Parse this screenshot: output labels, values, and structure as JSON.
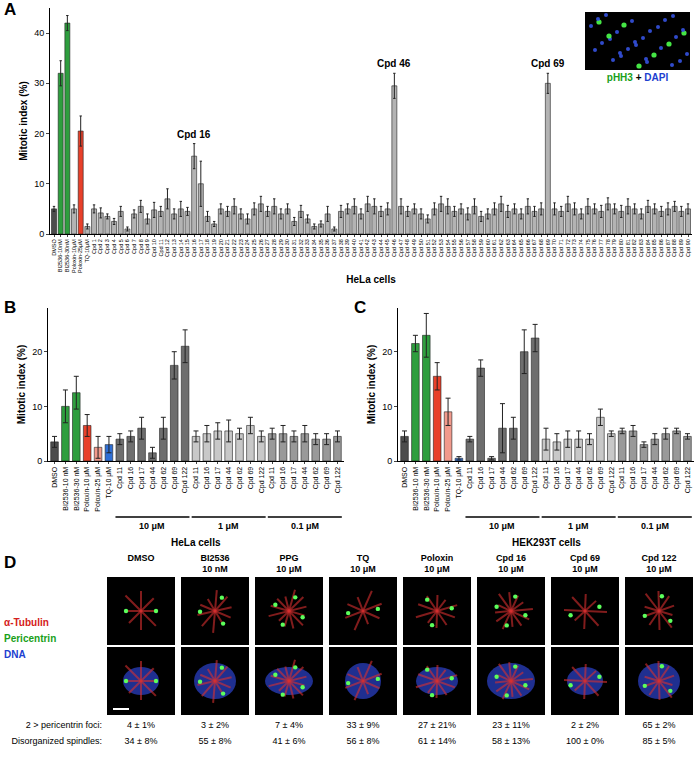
{
  "panel_labels": [
    "A",
    "B",
    "C",
    "D"
  ],
  "inset_label": [
    "pHH3",
    "+",
    "DAPI"
  ],
  "chart_data": [
    {
      "type": "bar",
      "ylabel": "Mitotic index (%)",
      "xlabel": "HeLa cells",
      "categories": [
        "DMSO",
        "BI2536-10nM",
        "BI2536-30nM",
        "Poloxin-10μM",
        "Poloxin-25μM",
        "TQ-10μM",
        "Cpd 1",
        "Cpd 2",
        "Cpd 3",
        "Cpd 4",
        "Cpd 5",
        "Cpd 6",
        "Cpd 7",
        "Cpd 8",
        "Cpd 9",
        "Cpd 10",
        "Cpd 11",
        "Cpd 12",
        "Cpd 13",
        "Cpd 14",
        "Cpd 15",
        "Cpd 16",
        "Cpd 17",
        "Cpd 18",
        "Cpd 19",
        "Cpd 20",
        "Cpd 21",
        "Cpd 22",
        "Cpd 23",
        "Cpd 24",
        "Cpd 25",
        "Cpd 26",
        "Cpd 27",
        "Cpd 28",
        "Cpd 29",
        "Cpd 30",
        "Cpd 31",
        "Cpd 32",
        "Cpd 33",
        "Cpd 34",
        "Cpd 35",
        "Cpd 36",
        "Cpd 37",
        "Cpd 38",
        "Cpd 39",
        "Cpd 40",
        "Cpd 41",
        "Cpd 42",
        "Cpd 43",
        "Cpd 44",
        "Cpd 45",
        "Cpd 46",
        "Cpd 47",
        "Cpd 48",
        "Cpd 49",
        "Cpd 50",
        "Cpd 51",
        "Cpd 52",
        "Cpd 53",
        "Cpd 54",
        "Cpd 55",
        "Cpd 56",
        "Cpd 57",
        "Cpd 58",
        "Cpd 59",
        "Cpd 60",
        "Cpd 61",
        "Cpd 62",
        "Cpd 63",
        "Cpd 64",
        "Cpd 65",
        "Cpd 66",
        "Cpd 67",
        "Cpd 68",
        "Cpd 69",
        "Cpd 70",
        "Cpd 71",
        "Cpd 72",
        "Cpd 73",
        "Cpd 74",
        "Cpd 75",
        "Cpd 76",
        "Cpd 77",
        "Cpd 78",
        "Cpd 79",
        "Cpd 80",
        "Cpd 81",
        "Cpd 82",
        "Cpd 83",
        "Cpd 84",
        "Cpd 85",
        "Cpd 86",
        "Cpd 87",
        "Cpd 88",
        "Cpd 89",
        "Cpd 90"
      ],
      "values": [
        5.0,
        32.0,
        42.0,
        5.0,
        20.5,
        1.5,
        5.0,
        4.2,
        3.5,
        2.5,
        4.5,
        1.0,
        4.0,
        5.5,
        3.0,
        4.8,
        4.5,
        7.0,
        4.0,
        5.0,
        4.5,
        15.5,
        10.0,
        3.5,
        2.0,
        5.0,
        4.5,
        5.5,
        4.0,
        3.0,
        5.0,
        6.0,
        4.5,
        5.5,
        4.0,
        5.0,
        2.5,
        4.5,
        3.0,
        1.5,
        2.0,
        4.0,
        1.0,
        4.5,
        5.0,
        5.5,
        4.0,
        6.0,
        5.5,
        4.5,
        5.0,
        29.5,
        5.5,
        4.5,
        5.0,
        4.0,
        3.0,
        5.0,
        6.0,
        5.5,
        4.5,
        5.0,
        4.0,
        5.5,
        3.5,
        4.0,
        5.0,
        6.0,
        4.5,
        5.0,
        4.0,
        5.5,
        4.5,
        5.0,
        30.0,
        5.0,
        4.5,
        6.0,
        5.0,
        4.0,
        5.5,
        5.0,
        4.5,
        6.0,
        5.0,
        4.5,
        5.5,
        5.0,
        4.0,
        5.5,
        5.0,
        4.5,
        5.0,
        5.5,
        4.5,
        5.0
      ],
      "errors": [
        0.5,
        2.5,
        1.5,
        0.8,
        3.0,
        0.5,
        0.8,
        1.0,
        0.5,
        0.6,
        1.0,
        0.4,
        0.8,
        1.2,
        1.0,
        1.5,
        1.0,
        2.0,
        1.0,
        1.5,
        0.8,
        2.5,
        4.5,
        1.0,
        0.5,
        1.0,
        1.0,
        1.5,
        1.0,
        1.0,
        1.2,
        1.5,
        1.0,
        1.5,
        1.0,
        1.0,
        0.8,
        1.2,
        0.8,
        0.5,
        0.6,
        1.5,
        0.4,
        1.2,
        1.0,
        1.5,
        1.0,
        1.5,
        1.5,
        1.0,
        1.2,
        2.5,
        1.5,
        1.0,
        1.0,
        1.0,
        0.8,
        1.2,
        1.5,
        1.5,
        1.0,
        1.0,
        1.2,
        1.5,
        1.0,
        1.0,
        1.2,
        1.5,
        1.2,
        1.0,
        1.0,
        1.5,
        1.0,
        1.2,
        2.0,
        1.2,
        1.0,
        1.5,
        1.2,
        1.0,
        1.5,
        1.0,
        1.2,
        1.2,
        1.0,
        1.2,
        1.5,
        1.0,
        1.0,
        1.2,
        1.0,
        1.0,
        1.2,
        1.0,
        1.0,
        1.0
      ],
      "colors": [
        "#4d4d4d",
        "#2e9e3e",
        "#2e9e3e",
        "#b3b3b3",
        "#e8402a",
        "#b3b3b3",
        "#b3b3b3",
        "#b3b3b3",
        "#b3b3b3",
        "#b3b3b3",
        "#b3b3b3",
        "#b3b3b3",
        "#b3b3b3",
        "#b3b3b3",
        "#b3b3b3",
        "#b3b3b3",
        "#b3b3b3",
        "#b3b3b3",
        "#b3b3b3",
        "#b3b3b3",
        "#b3b3b3",
        "#b3b3b3",
        "#b3b3b3",
        "#b3b3b3",
        "#b3b3b3",
        "#b3b3b3",
        "#b3b3b3",
        "#b3b3b3",
        "#b3b3b3",
        "#b3b3b3",
        "#b3b3b3",
        "#b3b3b3",
        "#b3b3b3",
        "#b3b3b3",
        "#b3b3b3",
        "#b3b3b3",
        "#b3b3b3",
        "#b3b3b3",
        "#b3b3b3",
        "#b3b3b3",
        "#b3b3b3",
        "#b3b3b3",
        "#b3b3b3",
        "#b3b3b3",
        "#b3b3b3",
        "#b3b3b3",
        "#b3b3b3",
        "#b3b3b3",
        "#b3b3b3",
        "#b3b3b3",
        "#b3b3b3",
        "#b3b3b3",
        "#b3b3b3",
        "#b3b3b3",
        "#b3b3b3",
        "#b3b3b3",
        "#b3b3b3",
        "#b3b3b3",
        "#b3b3b3",
        "#b3b3b3",
        "#b3b3b3",
        "#b3b3b3",
        "#b3b3b3",
        "#b3b3b3",
        "#b3b3b3",
        "#b3b3b3",
        "#b3b3b3",
        "#b3b3b3",
        "#b3b3b3",
        "#b3b3b3",
        "#b3b3b3",
        "#b3b3b3",
        "#b3b3b3",
        "#b3b3b3",
        "#b3b3b3",
        "#b3b3b3",
        "#b3b3b3",
        "#b3b3b3",
        "#b3b3b3",
        "#b3b3b3",
        "#b3b3b3",
        "#b3b3b3",
        "#b3b3b3",
        "#b3b3b3",
        "#b3b3b3",
        "#b3b3b3",
        "#b3b3b3",
        "#b3b3b3",
        "#b3b3b3",
        "#b3b3b3",
        "#b3b3b3",
        "#b3b3b3",
        "#b3b3b3",
        "#b3b3b3",
        "#b3b3b3",
        "#b3b3b3"
      ],
      "annotations": [
        {
          "text": "Cpd 16",
          "category": "Cpd 16"
        },
        {
          "text": "Cpd 46",
          "category": "Cpd 46"
        },
        {
          "text": "Cpd 69",
          "category": "Cpd 69"
        }
      ],
      "ylim": [
        0,
        45
      ],
      "yticks": [
        0,
        10,
        20,
        30,
        40
      ],
      "grid": false
    },
    {
      "type": "bar",
      "ylabel": "Mitotic index (%)",
      "xlabel": "HeLa cells",
      "categories": [
        "DMSO",
        "BI2536-10 nM",
        "BI2536-30 nM",
        "Poloxin-10 μM",
        "Poloxin-25 μM",
        "TQ-10 μM",
        "Cpd 11",
        "Cpd 16",
        "Cpd 17",
        "Cpd 44",
        "Cpd 62",
        "Cpd 69",
        "Cpd 122",
        "Cpd 11",
        "Cpd 16",
        "Cpd 17",
        "Cpd 44",
        "Cpd 62",
        "Cpd 69",
        "Cpd 122",
        "Cpd 11",
        "Cpd 16",
        "Cpd 17",
        "Cpd 44",
        "Cpd 62",
        "Cpd 69",
        "Cpd 122"
      ],
      "groups": [
        null,
        null,
        null,
        null,
        null,
        null,
        "10 μM",
        "10 μM",
        "10 μM",
        "10 μM",
        "10 μM",
        "10 μM",
        "10 μM",
        "1 μM",
        "1 μM",
        "1 μM",
        "1 μM",
        "1 μM",
        "1 μM",
        "1 μM",
        "0.1 μM",
        "0.1 μM",
        "0.1 μM",
        "0.1 μM",
        "0.1 μM",
        "0.1 μM",
        "0.1 μM"
      ],
      "values": [
        3.5,
        10.0,
        12.5,
        6.5,
        2.5,
        3.0,
        4.0,
        4.5,
        6.0,
        1.5,
        6.0,
        17.5,
        21.0,
        4.5,
        5.0,
        5.5,
        5.5,
        5.0,
        6.5,
        4.5,
        5.0,
        5.0,
        4.5,
        5.0,
        4.0,
        4.0,
        4.5
      ],
      "errors": [
        1.0,
        3.0,
        3.0,
        2.0,
        2.0,
        1.5,
        1.0,
        1.0,
        2.0,
        1.0,
        2.0,
        2.5,
        3.0,
        1.0,
        1.5,
        1.5,
        2.0,
        1.0,
        1.5,
        1.0,
        1.0,
        1.5,
        1.0,
        1.5,
        1.0,
        1.0,
        1.0
      ],
      "colors": [
        "#4d4d4d",
        "#2e9e3e",
        "#2e9e3e",
        "#e8402a",
        "#f29a8c",
        "#2f6fd6",
        "#6e6e6e",
        "#6e6e6e",
        "#6e6e6e",
        "#6e6e6e",
        "#6e6e6e",
        "#6e6e6e",
        "#6e6e6e",
        "#c8c8c8",
        "#c8c8c8",
        "#c8c8c8",
        "#c8c8c8",
        "#c8c8c8",
        "#c8c8c8",
        "#c8c8c8",
        "#999999",
        "#999999",
        "#999999",
        "#999999",
        "#999999",
        "#999999",
        "#999999"
      ],
      "ylim": [
        0,
        28
      ],
      "yticks": [
        0,
        10,
        20
      ],
      "grid": false
    },
    {
      "type": "bar",
      "ylabel": "Mitotic index (%)",
      "xlabel": "HEK293T cells",
      "categories": [
        "DMSO",
        "BI2536-10 nM",
        "BI2536-30 nM",
        "Poloxin-10 μM",
        "Poloxin-25 μM",
        "TQ-10 μM",
        "Cpd 11",
        "Cpd 16",
        "Cpd 17",
        "Cpd 44",
        "Cpd 62",
        "Cpd 69",
        "Cpd 122",
        "Cpd 11",
        "Cpd 16",
        "Cpd 17",
        "Cpd 44",
        "Cpd 62",
        "Cpd 69",
        "Cpd 122",
        "Cpd 11",
        "Cpd 16",
        "Cpd 17",
        "Cpd 44",
        "Cpd 62",
        "Cpd 69",
        "Cpd 122"
      ],
      "groups": [
        null,
        null,
        null,
        null,
        null,
        null,
        "10 μM",
        "10 μM",
        "10 μM",
        "10 μM",
        "10 μM",
        "10 μM",
        "10 μM",
        "1 μM",
        "1 μM",
        "1 μM",
        "1 μM",
        "1 μM",
        "1 μM",
        "1 μM",
        "0.1 μM",
        "0.1 μM",
        "0.1 μM",
        "0.1 μM",
        "0.1 μM",
        "0.1 μM",
        "0.1 μM"
      ],
      "values": [
        4.5,
        21.5,
        23.0,
        15.5,
        9.0,
        0.5,
        4.0,
        17.0,
        0.5,
        6.0,
        6.0,
        20.0,
        22.5,
        4.0,
        3.5,
        4.0,
        4.0,
        4.0,
        8.0,
        5.0,
        5.5,
        5.5,
        3.0,
        4.0,
        5.0,
        5.5,
        4.5
      ],
      "errors": [
        1.0,
        1.5,
        4.0,
        2.5,
        2.5,
        0.3,
        0.5,
        1.5,
        0.3,
        4.5,
        2.0,
        4.0,
        2.5,
        2.0,
        1.5,
        1.5,
        1.5,
        1.0,
        1.5,
        0.5,
        0.5,
        1.0,
        0.5,
        1.0,
        1.0,
        0.5,
        0.5
      ],
      "colors": [
        "#4d4d4d",
        "#2e9e3e",
        "#2e9e3e",
        "#e8402a",
        "#f29a8c",
        "#2f6fd6",
        "#6e6e6e",
        "#6e6e6e",
        "#6e6e6e",
        "#6e6e6e",
        "#6e6e6e",
        "#6e6e6e",
        "#6e6e6e",
        "#c8c8c8",
        "#c8c8c8",
        "#c8c8c8",
        "#c8c8c8",
        "#c8c8c8",
        "#c8c8c8",
        "#c8c8c8",
        "#999999",
        "#999999",
        "#999999",
        "#999999",
        "#999999",
        "#999999",
        "#999999"
      ],
      "ylim": [
        0,
        28
      ],
      "yticks": [
        0,
        10,
        20
      ],
      "grid": false
    }
  ],
  "panel_d": {
    "stains": [
      "α-Tubulin",
      "Pericentrin",
      "DNA"
    ],
    "columns": [
      [
        "DMSO"
      ],
      [
        "BI2536",
        "10 nM"
      ],
      [
        "PPG",
        "10 μM"
      ],
      [
        "TQ",
        "10 μM"
      ],
      [
        "Poloxin",
        "10 μM"
      ],
      [
        "Cpd 16",
        "10 μM"
      ],
      [
        "Cpd 69",
        "10 μM"
      ],
      [
        "Cpd 122",
        "10 μM"
      ]
    ],
    "rows": [
      {
        "label": "2 > pericentrin foci:",
        "values": [
          "4 ± 1%",
          "3 ± 2%",
          "7 ± 4%",
          "33 ± 9%",
          "27 ± 21%",
          "23 ± 11%",
          "2 ± 2%",
          "65 ± 2%"
        ]
      },
      {
        "label": "Disorganized spindles:",
        "values": [
          "34 ± 8%",
          "55 ± 8%",
          "41 ± 6%",
          "56 ± 8%",
          "61 ± 14%",
          "58 ± 13%",
          "100 ± 0%",
          "85 ± 5%"
        ]
      }
    ]
  }
}
